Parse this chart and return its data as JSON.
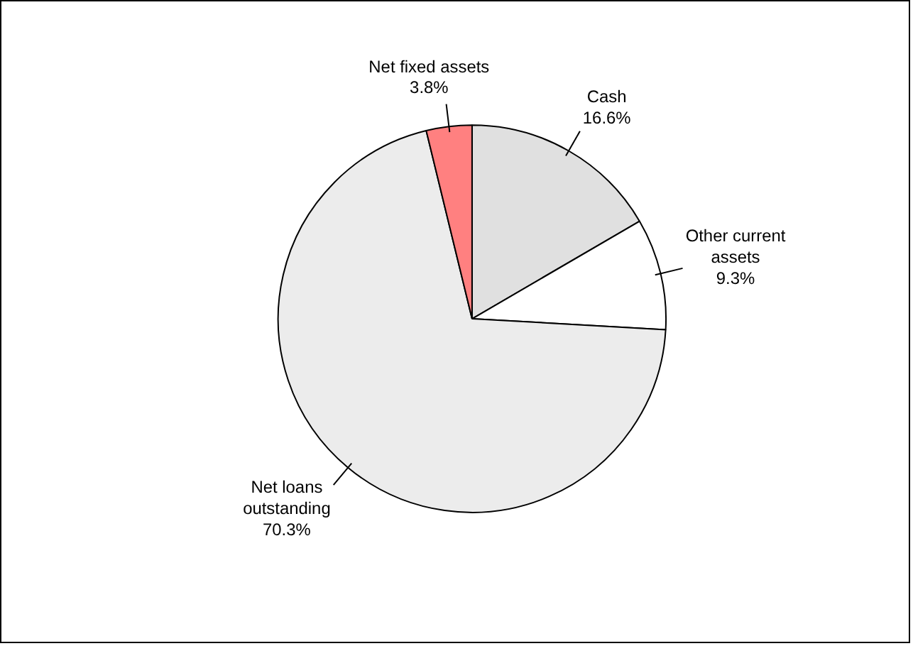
{
  "chart_data": {
    "type": "pie",
    "categories": [
      "Cash",
      "Other current assets",
      "Net loans outstanding",
      "Net fixed assets"
    ],
    "values": [
      16.6,
      9.3,
      70.3,
      3.8
    ],
    "colors": [
      "#e0e0e0",
      "#ffffff",
      "#ececec",
      "#ff8080"
    ],
    "value_labels": [
      "16.6%",
      "9.3%",
      "70.3%",
      "3.8%"
    ],
    "legend": false
  }
}
